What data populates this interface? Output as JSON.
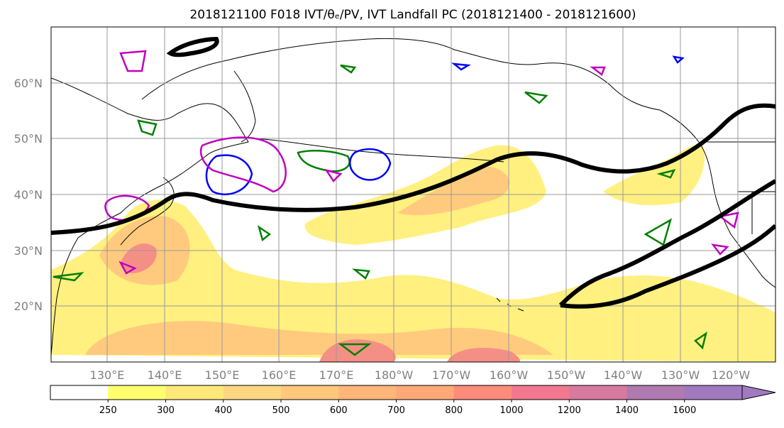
{
  "title": "2018121100 F018 IVT/θₑ/PV, IVT Landfall PC (2018121400 - 2018121600)",
  "latitude_labels": [
    "60°N",
    "50°N",
    "40°N",
    "30°N",
    "20°N"
  ],
  "longitude_labels": [
    "130°E",
    "140°E",
    "150°E",
    "160°E",
    "170°E",
    "180°W",
    "170°W",
    "160°W",
    "150°W",
    "140°W",
    "130°W",
    "120°W"
  ],
  "colorbar": {
    "ticks": [
      "250",
      "300",
      "400",
      "500",
      "600",
      "700",
      "800",
      "1000",
      "1200",
      "1400",
      "1600"
    ],
    "colors": [
      "#ffffff",
      "#ffff6e",
      "#ffe87a",
      "#ffd780",
      "#ffc87a",
      "#ffb678",
      "#ffa878",
      "#ff8b7a",
      "#f27890",
      "#d77aa0",
      "#b07ab0",
      "#a07ac0"
    ]
  },
  "colors": {
    "ivt_fill_low": "#fff07a",
    "ivt_fill_mid": "#ffc878",
    "ivt_fill_high": "#f48a80",
    "theta_e_contour": "#008000",
    "pv_contour": "#0000ff",
    "pv_contour_2": "#c000c0",
    "landfall_pc_contour": "#000000",
    "coastline": "#000000",
    "grid": "#999999"
  }
}
